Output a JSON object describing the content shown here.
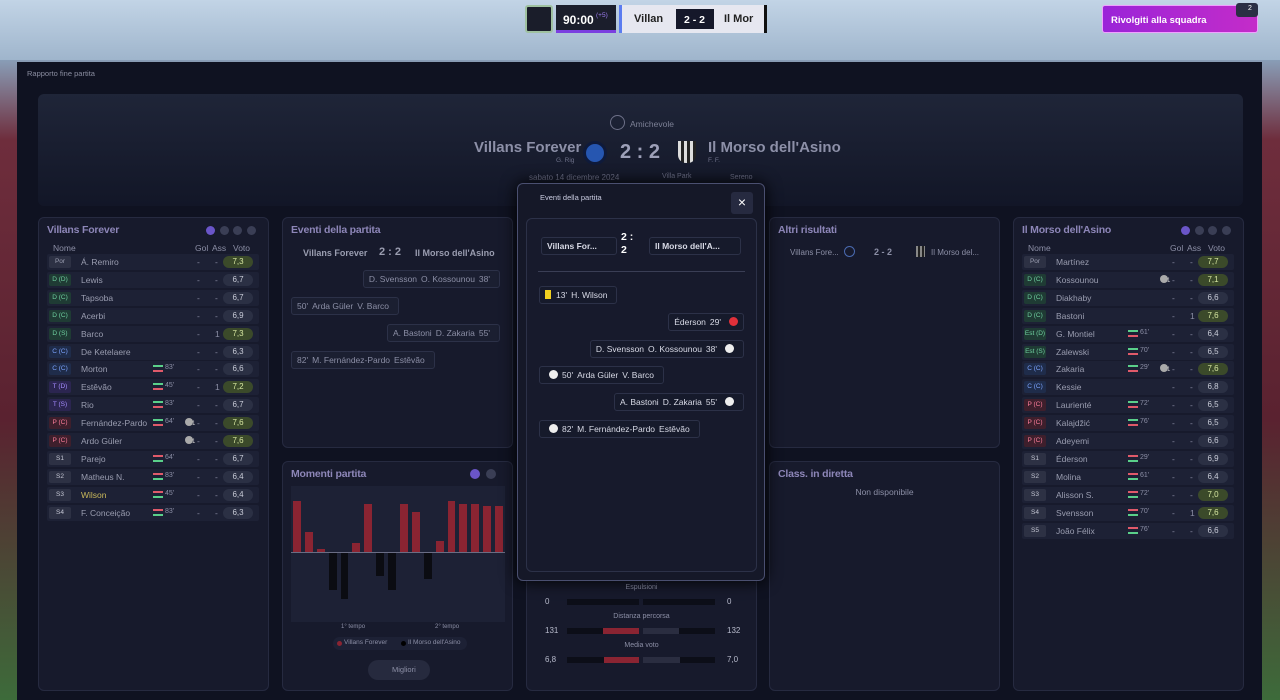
{
  "topbar": {
    "time": "90:00",
    "added": "(+5)",
    "home": "Villan",
    "score": "2 - 2",
    "away": "Il Mor",
    "action": "Rivolgiti alla squadra",
    "badge": "2"
  },
  "breadcrumb": "Rapporto fine partita",
  "header": {
    "competition": "Amichevole",
    "home": "Villans Forever",
    "home_manager": "G. Rig",
    "score": "2 : 2",
    "away": "Il Morso dell'Asino",
    "away_manager": "F. F.",
    "date": "sabato 14 dicembre 2024",
    "stadium": "Villa Park",
    "weather": "Sereno"
  },
  "columns": {
    "name": "Nome",
    "goals": "Gol",
    "assists": "Ass",
    "rating": "Voto"
  },
  "home_team": {
    "title": "Villans Forever",
    "players": [
      [
        "Por",
        "Á. Remiro",
        null,
        null,
        "-",
        "-",
        "7,3"
      ],
      [
        "D (D)",
        "Lewis",
        null,
        null,
        "-",
        "-",
        "6,7"
      ],
      [
        "D (C)",
        "Tapsoba",
        null,
        null,
        "-",
        "-",
        "6,7"
      ],
      [
        "D (C)",
        "Acerbi",
        null,
        null,
        "-",
        "-",
        "6,9"
      ],
      [
        "D (S)",
        "Barco",
        null,
        null,
        "-",
        "1",
        "7,3"
      ],
      [
        "C (C)",
        "De Ketelaere",
        null,
        null,
        "-",
        "-",
        "6,3"
      ],
      [
        "C (C)",
        "Morton",
        "83'",
        null,
        "-",
        "-",
        "6,6"
      ],
      [
        "T (D)",
        "Estêvão",
        "45'",
        null,
        "-",
        "1",
        "7,2"
      ],
      [
        "T (S)",
        "Rio",
        "83'",
        null,
        "-",
        "-",
        "6,7"
      ],
      [
        "P (C)",
        "Fernández-Pardo",
        "64'",
        "1",
        "-",
        "-",
        "7,6"
      ],
      [
        "P (C)",
        "Ardo Güler",
        null,
        "1",
        "-",
        "-",
        "7,6"
      ],
      [
        "S1",
        "Parejo",
        "64'",
        null,
        "-",
        "-",
        "6,7"
      ],
      [
        "S2",
        "Matheus N.",
        "83'",
        null,
        "-",
        "-",
        "6,4"
      ],
      [
        "S3",
        "Wilson",
        "45'",
        null,
        "-",
        "-",
        "6,4"
      ],
      [
        "S4",
        "F. Conceição",
        "83'",
        null,
        "-",
        "-",
        "6,3"
      ]
    ]
  },
  "away_team": {
    "title": "Il Morso dell'Asino",
    "players": [
      [
        "Por",
        "Martínez",
        null,
        null,
        "-",
        "-",
        "7,7"
      ],
      [
        "D (C)",
        "Kossounou",
        null,
        "1",
        "-",
        "-",
        "7,1"
      ],
      [
        "D (C)",
        "Diakhaby",
        null,
        null,
        "-",
        "-",
        "6,6"
      ],
      [
        "D (C)",
        "Bastoni",
        null,
        null,
        "-",
        "1",
        "7,6"
      ],
      [
        "Est (D)",
        "G. Montiel",
        "61'",
        null,
        "-",
        "-",
        "6,4"
      ],
      [
        "Est (S)",
        "Zalewski",
        "70'",
        null,
        "-",
        "-",
        "6,5"
      ],
      [
        "C (C)",
        "Zakaria",
        "29'",
        "1",
        "-",
        "-",
        "7,6"
      ],
      [
        "C (C)",
        "Kessie",
        null,
        null,
        "-",
        "-",
        "6,8"
      ],
      [
        "P (C)",
        "Laurienté",
        "72'",
        null,
        "-",
        "-",
        "6,5"
      ],
      [
        "P (C)",
        "Kalajdžić",
        "76'",
        null,
        "-",
        "-",
        "6,5"
      ],
      [
        "P (C)",
        "Adeyemi",
        null,
        null,
        "-",
        "-",
        "6,6"
      ],
      [
        "S1",
        "Éderson",
        "29'",
        null,
        "-",
        "-",
        "6,9"
      ],
      [
        "S2",
        "Molina",
        "61'",
        null,
        "-",
        "-",
        "6,4"
      ],
      [
        "S3",
        "Alisson S.",
        "72'",
        null,
        "-",
        "-",
        "7,0"
      ],
      [
        "S4",
        "Svensson",
        "70'",
        null,
        "-",
        "1",
        "7,6"
      ],
      [
        "S5",
        "João Félix",
        "76'",
        null,
        "-",
        "-",
        "6,6"
      ]
    ]
  },
  "events_panel": {
    "title": "Eventi della partita",
    "home": "Villans Forever",
    "score": "2 : 2",
    "away": "Il Morso dell'Asino"
  },
  "moments": {
    "title": "Momenti partita",
    "home": [
      9,
      3.5,
      0.5,
      0,
      0,
      1.5,
      8.5,
      0,
      0,
      8.5,
      7,
      0,
      2,
      9,
      8.5,
      8.5,
      8,
      8
    ],
    "away": [
      0,
      0,
      0,
      6.5,
      8,
      0,
      0,
      4,
      6.5,
      0,
      0,
      4.5,
      0,
      0,
      0,
      0,
      0,
      0
    ],
    "first_half": "1° tempo",
    "second_half": "2° tempo",
    "legend_home": "Villans Forever",
    "legend_away": "Il Morso dell'Asino",
    "button": "Migliori"
  },
  "stats": [
    {
      "label": "Espulsioni",
      "home": 0,
      "away": 0
    },
    {
      "label": "Distanza percorsa",
      "home": 131,
      "away": 132
    },
    {
      "label": "Media voto",
      "home": {
        "value": 6.8,
        "label": "6,8"
      },
      "away": {
        "value": 7.0,
        "label": "7,0"
      }
    }
  ],
  "other_results": {
    "title": "Altri risultati",
    "home": "Villans Fore...",
    "score": "2 - 2",
    "away": "Il Morso del..."
  },
  "live_table": {
    "title": "Class. in diretta",
    "message": "Non disponibile"
  },
  "modal": {
    "title": "Eventi della partita",
    "home": "Villans For...",
    "score": "2 : 2",
    "away": "Il Morso dell'A...",
    "events": [
      {
        "side": "home",
        "minute": "13'",
        "player": "H. Wilson",
        "kind": "card"
      },
      {
        "side": "away",
        "minute": "29'",
        "player": "Éderson",
        "kind": "injury"
      },
      {
        "side": "away",
        "minute": "38'",
        "player": "D. Svensson",
        "assist": "O. Kossounou",
        "kind": "goal"
      },
      {
        "side": "home",
        "minute": "50'",
        "player": "Arda Güler",
        "assist": "V. Barco",
        "kind": "goal"
      },
      {
        "side": "away",
        "minute": "55'",
        "player": "A. Bastoni",
        "assist": "D. Zakaria",
        "kind": "goal"
      },
      {
        "side": "home",
        "minute": "82'",
        "player": "M. Fernández-Pardo",
        "assist": "Estêvão",
        "kind": "goal"
      }
    ]
  }
}
